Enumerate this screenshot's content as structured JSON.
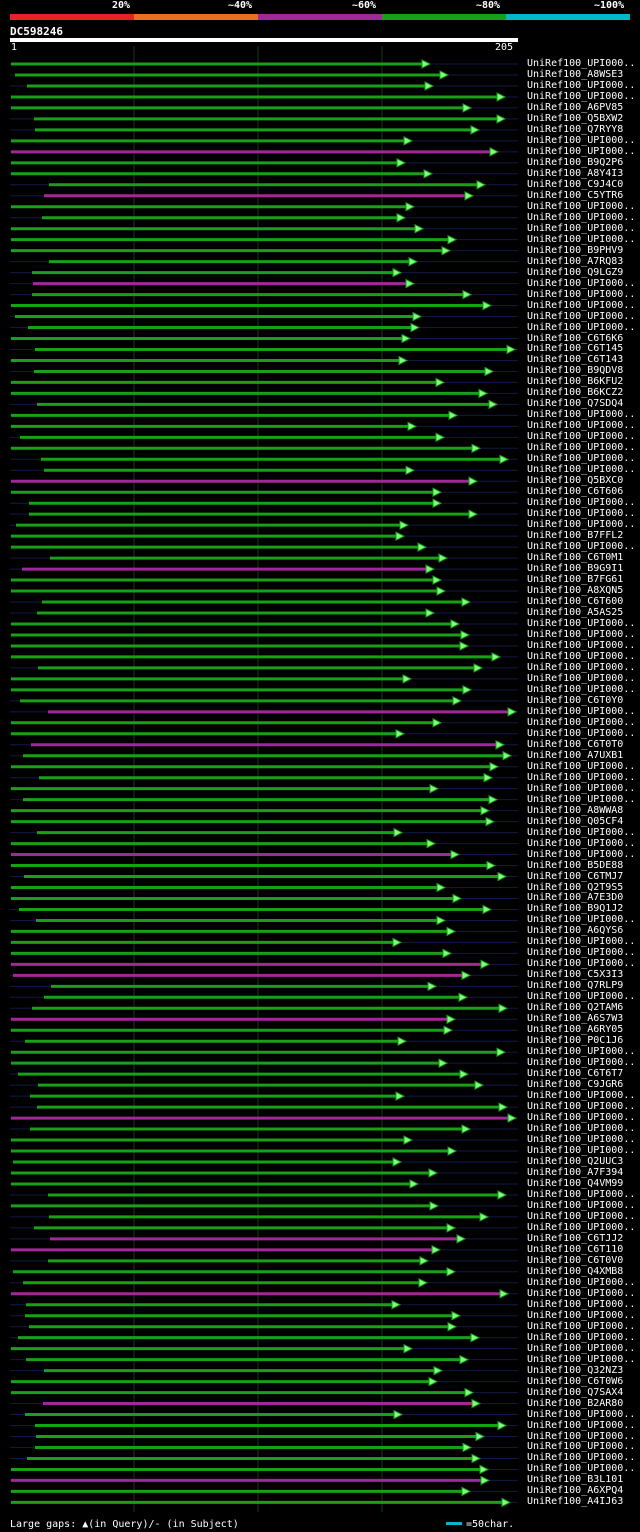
{
  "legend": {
    "labels": [
      "20%",
      "~40%",
      "~60%",
      "~80%",
      "~100%"
    ],
    "colors": [
      "#e8202a",
      "#e87020",
      "#a02898",
      "#18a018",
      "#00b8c8"
    ]
  },
  "query": {
    "name": "DC598246",
    "start": "1",
    "end": "205"
  },
  "footer": {
    "gaps_text": "Large gaps: ▲(in Query)/- (in Subject)",
    "scale_text": "=50char."
  },
  "hits": [
    {
      "label": "UniRef100_UPI000..",
      "color": "green"
    },
    {
      "label": "UniRef100_A8WSE3",
      "color": "green"
    },
    {
      "label": "UniRef100_UPI000..",
      "color": "green"
    },
    {
      "label": "UniRef100_UPI000..",
      "color": "green"
    },
    {
      "label": "UniRef100_A6PV85",
      "color": "green"
    },
    {
      "label": "UniRef100_Q5BXW2",
      "color": "green"
    },
    {
      "label": "UniRef100_Q7RYY8",
      "color": "green"
    },
    {
      "label": "UniRef100_UPI000..",
      "color": "green"
    },
    {
      "label": "UniRef100_UPI000..",
      "color": "purple"
    },
    {
      "label": "UniRef100_B9Q2P6",
      "color": "green"
    },
    {
      "label": "UniRef100_A8Y4I3",
      "color": "green"
    },
    {
      "label": "UniRef100_C9J4C0",
      "color": "green"
    },
    {
      "label": "UniRef100_C5YTR6",
      "color": "purple"
    },
    {
      "label": "UniRef100_UPI000..",
      "color": "green"
    },
    {
      "label": "UniRef100_UPI000..",
      "color": "green"
    },
    {
      "label": "UniRef100_UPI000..",
      "color": "green"
    },
    {
      "label": "UniRef100_UPI000..",
      "color": "green"
    },
    {
      "label": "UniRef100_B9PHV9",
      "color": "green"
    },
    {
      "label": "UniRef100_A7RQ83",
      "color": "green"
    },
    {
      "label": "UniRef100_Q9LGZ9",
      "color": "green"
    },
    {
      "label": "UniRef100_UPI000..",
      "color": "purple"
    },
    {
      "label": "UniRef100_UPI000..",
      "color": "green"
    },
    {
      "label": "UniRef100_UPI000..",
      "color": "green"
    },
    {
      "label": "UniRef100_UPI000..",
      "color": "green"
    },
    {
      "label": "UniRef100_UPI000..",
      "color": "green"
    },
    {
      "label": "UniRef100_C6T6K6",
      "color": "green"
    },
    {
      "label": "UniRef100_C6T145",
      "color": "green"
    },
    {
      "label": "UniRef100_C6T143",
      "color": "green"
    },
    {
      "label": "UniRef100_B9QDV8",
      "color": "green"
    },
    {
      "label": "UniRef100_B6KFU2",
      "color": "green"
    },
    {
      "label": "UniRef100_B6KCZ2",
      "color": "green"
    },
    {
      "label": "UniRef100_Q7SDQ4",
      "color": "green"
    },
    {
      "label": "UniRef100_UPI000..",
      "color": "green"
    },
    {
      "label": "UniRef100_UPI000..",
      "color": "green"
    },
    {
      "label": "UniRef100_UPI000..",
      "color": "green"
    },
    {
      "label": "UniRef100_UPI000..",
      "color": "green"
    },
    {
      "label": "UniRef100_UPI000..",
      "color": "green"
    },
    {
      "label": "UniRef100_UPI000..",
      "color": "green"
    },
    {
      "label": "UniRef100_Q5BXC0",
      "color": "purple"
    },
    {
      "label": "UniRef100_C6T606",
      "color": "green"
    },
    {
      "label": "UniRef100_UPI000..",
      "color": "green"
    },
    {
      "label": "UniRef100_UPI000..",
      "color": "green"
    },
    {
      "label": "UniRef100_UPI000..",
      "color": "green"
    },
    {
      "label": "UniRef100_B7FFL2",
      "color": "green"
    },
    {
      "label": "UniRef100_UPI000..",
      "color": "green"
    },
    {
      "label": "UniRef100_C6T0M1",
      "color": "green"
    },
    {
      "label": "UniRef100_B9G9I1",
      "color": "purple"
    },
    {
      "label": "UniRef100_B7FG61",
      "color": "green"
    },
    {
      "label": "UniRef100_A8XQN5",
      "color": "green"
    },
    {
      "label": "UniRef100_C6T600",
      "color": "green"
    },
    {
      "label": "UniRef100_A5AS25",
      "color": "green"
    },
    {
      "label": "UniRef100_UPI000..",
      "color": "green"
    },
    {
      "label": "UniRef100_UPI000..",
      "color": "green"
    },
    {
      "label": "UniRef100_UPI000..",
      "color": "green"
    },
    {
      "label": "UniRef100_UPI000..",
      "color": "green"
    },
    {
      "label": "UniRef100_UPI000..",
      "color": "green"
    },
    {
      "label": "UniRef100_UPI000..",
      "color": "green"
    },
    {
      "label": "UniRef100_UPI000..",
      "color": "green"
    },
    {
      "label": "UniRef100_C6T0Y0",
      "color": "green"
    },
    {
      "label": "UniRef100_UPI000..",
      "color": "purple"
    },
    {
      "label": "UniRef100_UPI000..",
      "color": "green"
    },
    {
      "label": "UniRef100_UPI000..",
      "color": "green"
    },
    {
      "label": "UniRef100_C6T0T0",
      "color": "purple"
    },
    {
      "label": "UniRef100_A7UXB1",
      "color": "green"
    },
    {
      "label": "UniRef100_UPI000..",
      "color": "green"
    },
    {
      "label": "UniRef100_UPI000..",
      "color": "green"
    },
    {
      "label": "UniRef100_UPI000..",
      "color": "green"
    },
    {
      "label": "UniRef100_UPI000..",
      "color": "green"
    },
    {
      "label": "UniRef100_A8WWA8",
      "color": "green"
    },
    {
      "label": "UniRef100_Q05CF4",
      "color": "green"
    },
    {
      "label": "UniRef100_UPI000..",
      "color": "green"
    },
    {
      "label": "UniRef100_UPI000..",
      "color": "green"
    },
    {
      "label": "UniRef100_UPI000..",
      "color": "purple"
    },
    {
      "label": "UniRef100_B5DE88",
      "color": "green"
    },
    {
      "label": "UniRef100_C6TMJ7",
      "color": "green"
    },
    {
      "label": "UniRef100_Q2T9S5",
      "color": "green"
    },
    {
      "label": "UniRef100_A7E3D0",
      "color": "green"
    },
    {
      "label": "UniRef100_B9Q1J2",
      "color": "green"
    },
    {
      "label": "UniRef100_UPI000..",
      "color": "green"
    },
    {
      "label": "UniRef100_A6QYS6",
      "color": "green"
    },
    {
      "label": "UniRef100_UPI000..",
      "color": "green"
    },
    {
      "label": "UniRef100_UPI000..",
      "color": "green"
    },
    {
      "label": "UniRef100_UPI000..",
      "color": "purple"
    },
    {
      "label": "UniRef100_C5X3I3",
      "color": "purple"
    },
    {
      "label": "UniRef100_Q7RLP9",
      "color": "green"
    },
    {
      "label": "UniRef100_UPI000..",
      "color": "green"
    },
    {
      "label": "UniRef100_Q2TAM6",
      "color": "green"
    },
    {
      "label": "UniRef100_A6S7W3",
      "color": "purple"
    },
    {
      "label": "UniRef100_A6RY05",
      "color": "green"
    },
    {
      "label": "UniRef100_P0C1J6",
      "color": "green"
    },
    {
      "label": "UniRef100_UPI000..",
      "color": "green"
    },
    {
      "label": "UniRef100_UPI000..",
      "color": "green"
    },
    {
      "label": "UniRef100_C6T6T7",
      "color": "green"
    },
    {
      "label": "UniRef100_C9JGR6",
      "color": "green"
    },
    {
      "label": "UniRef100_UPI000..",
      "color": "green"
    },
    {
      "label": "UniRef100_UPI000..",
      "color": "green"
    },
    {
      "label": "UniRef100_UPI000..",
      "color": "purple"
    },
    {
      "label": "UniRef100_UPI000..",
      "color": "green"
    },
    {
      "label": "UniRef100_UPI000..",
      "color": "green"
    },
    {
      "label": "UniRef100_UPI000..",
      "color": "green"
    },
    {
      "label": "UniRef100_Q2UUC3",
      "color": "green"
    },
    {
      "label": "UniRef100_A7F394",
      "color": "green"
    },
    {
      "label": "UniRef100_Q4VM99",
      "color": "green"
    },
    {
      "label": "UniRef100_UPI000..",
      "color": "green"
    },
    {
      "label": "UniRef100_UPI000..",
      "color": "green"
    },
    {
      "label": "UniRef100_UPI000..",
      "color": "green"
    },
    {
      "label": "UniRef100_UPI000..",
      "color": "green"
    },
    {
      "label": "UniRef100_C6TJJ2",
      "color": "purple"
    },
    {
      "label": "UniRef100_C6T110",
      "color": "purple"
    },
    {
      "label": "UniRef100_C6T0V0",
      "color": "green"
    },
    {
      "label": "UniRef100_Q4XMB8",
      "color": "green"
    },
    {
      "label": "UniRef100_UPI000..",
      "color": "green"
    },
    {
      "label": "UniRef100_UPI000..",
      "color": "purple"
    },
    {
      "label": "UniRef100_UPI000..",
      "color": "green"
    },
    {
      "label": "UniRef100_UPI000..",
      "color": "green"
    },
    {
      "label": "UniRef100_UPI000..",
      "color": "green"
    },
    {
      "label": "UniRef100_UPI000..",
      "color": "green"
    },
    {
      "label": "UniRef100_UPI000..",
      "color": "green"
    },
    {
      "label": "UniRef100_UPI000..",
      "color": "green"
    },
    {
      "label": "UniRef100_Q32NZ3",
      "color": "green"
    },
    {
      "label": "UniRef100_C6T0W6",
      "color": "green"
    },
    {
      "label": "UniRef100_Q7SAX4",
      "color": "green"
    },
    {
      "label": "UniRef100_B2AR80",
      "color": "purple"
    },
    {
      "label": "UniRef100_UPI000..",
      "color": "green"
    },
    {
      "label": "UniRef100_UPI000..",
      "color": "green"
    },
    {
      "label": "UniRef100_UPI000..",
      "color": "green"
    },
    {
      "label": "UniRef100_UPI000..",
      "color": "green"
    },
    {
      "label": "UniRef100_UPI000..",
      "color": "green"
    },
    {
      "label": "UniRef100_UPI000..",
      "color": "green"
    },
    {
      "label": "UniRef100_B3L101",
      "color": "purple"
    },
    {
      "label": "UniRef100_A6XPQ4",
      "color": "green"
    },
    {
      "label": "UniRef100_A4IJ63",
      "color": "green"
    }
  ]
}
